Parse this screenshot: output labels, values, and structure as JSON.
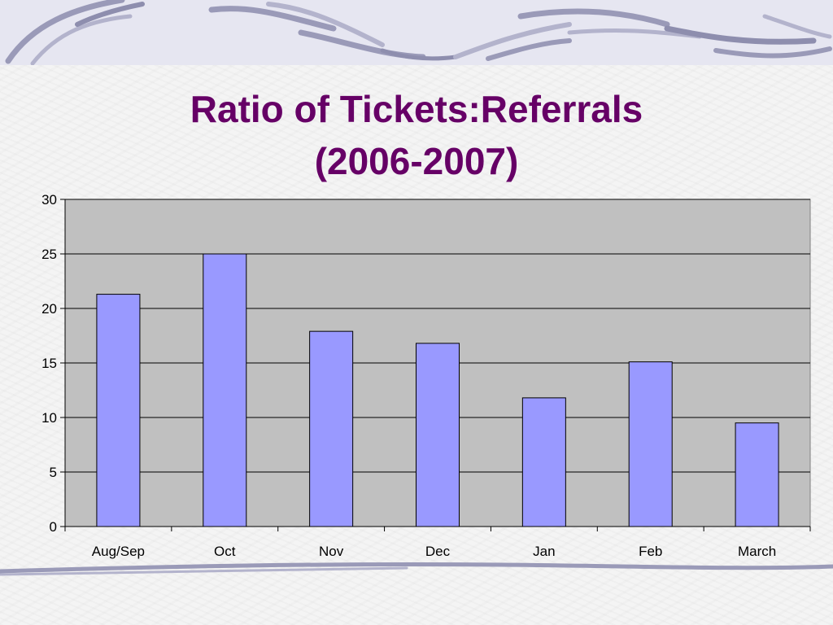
{
  "slide": {
    "title_line1": "Ratio of Tickets:Referrals",
    "title_line2": "(2006-2007)",
    "accent_color": "#660066",
    "bar_color": "#9999ff",
    "plot_background": "#c0c0c0"
  },
  "chart_data": {
    "type": "bar",
    "title": "Ratio of Tickets:Referrals (2006-2007)",
    "categories": [
      "Aug/Sep",
      "Oct",
      "Nov",
      "Dec",
      "Jan",
      "Feb",
      "March"
    ],
    "values": [
      21.3,
      25,
      17.9,
      16.8,
      11.8,
      15.1,
      9.5
    ],
    "xlabel": "",
    "ylabel": "",
    "ylim": [
      0,
      30
    ],
    "yticks": [
      0,
      5,
      10,
      15,
      20,
      25,
      30
    ],
    "grid": true,
    "legend": "none"
  }
}
